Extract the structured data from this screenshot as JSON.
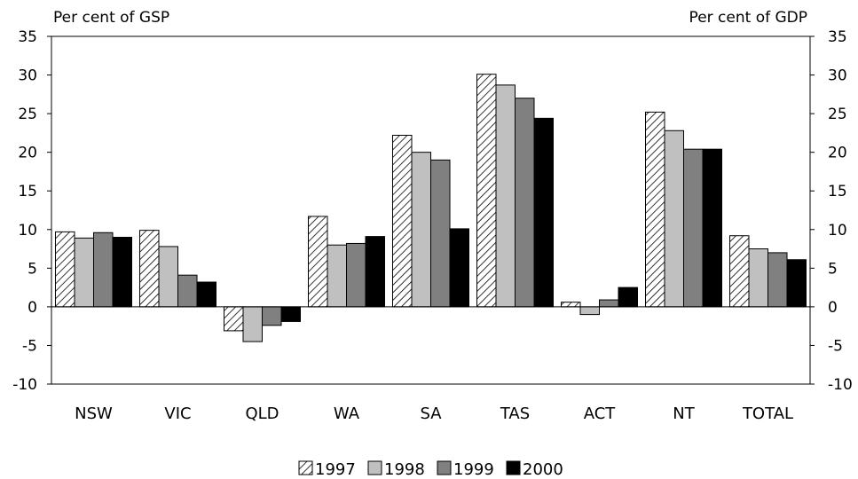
{
  "chart_data": {
    "type": "bar",
    "left_axis_label": "Per cent of GSP",
    "right_axis_label": "Per cent of GDP",
    "categories": [
      "NSW",
      "VIC",
      "QLD",
      "WA",
      "SA",
      "TAS",
      "ACT",
      "NT",
      "TOTAL"
    ],
    "series": [
      {
        "name": "1997",
        "style": "hatched",
        "values": [
          9.7,
          9.9,
          -3.1,
          11.7,
          22.2,
          30.1,
          0.6,
          25.2,
          9.2
        ]
      },
      {
        "name": "1998",
        "style": "light-gray",
        "values": [
          8.9,
          7.8,
          -4.5,
          8.0,
          20.0,
          28.7,
          -1.0,
          22.8,
          7.5
        ]
      },
      {
        "name": "1999",
        "style": "dark-gray",
        "values": [
          9.6,
          4.1,
          -2.4,
          8.2,
          19.0,
          27.0,
          0.9,
          20.4,
          7.0
        ]
      },
      {
        "name": "2000",
        "style": "black",
        "values": [
          9.0,
          3.2,
          -1.9,
          9.1,
          10.1,
          24.4,
          2.5,
          20.4,
          6.1
        ]
      }
    ],
    "ylim": [
      -10,
      35
    ],
    "yticks": [
      "35",
      "30",
      "25",
      "20",
      "15",
      "10",
      "5",
      "0",
      "-5",
      "-10"
    ],
    "grid": false,
    "legend_position": "bottom-center",
    "colors": {
      "1998": "#c0c0c0",
      "1999": "#808080",
      "2000": "#000000",
      "hatch": "#000000"
    }
  }
}
